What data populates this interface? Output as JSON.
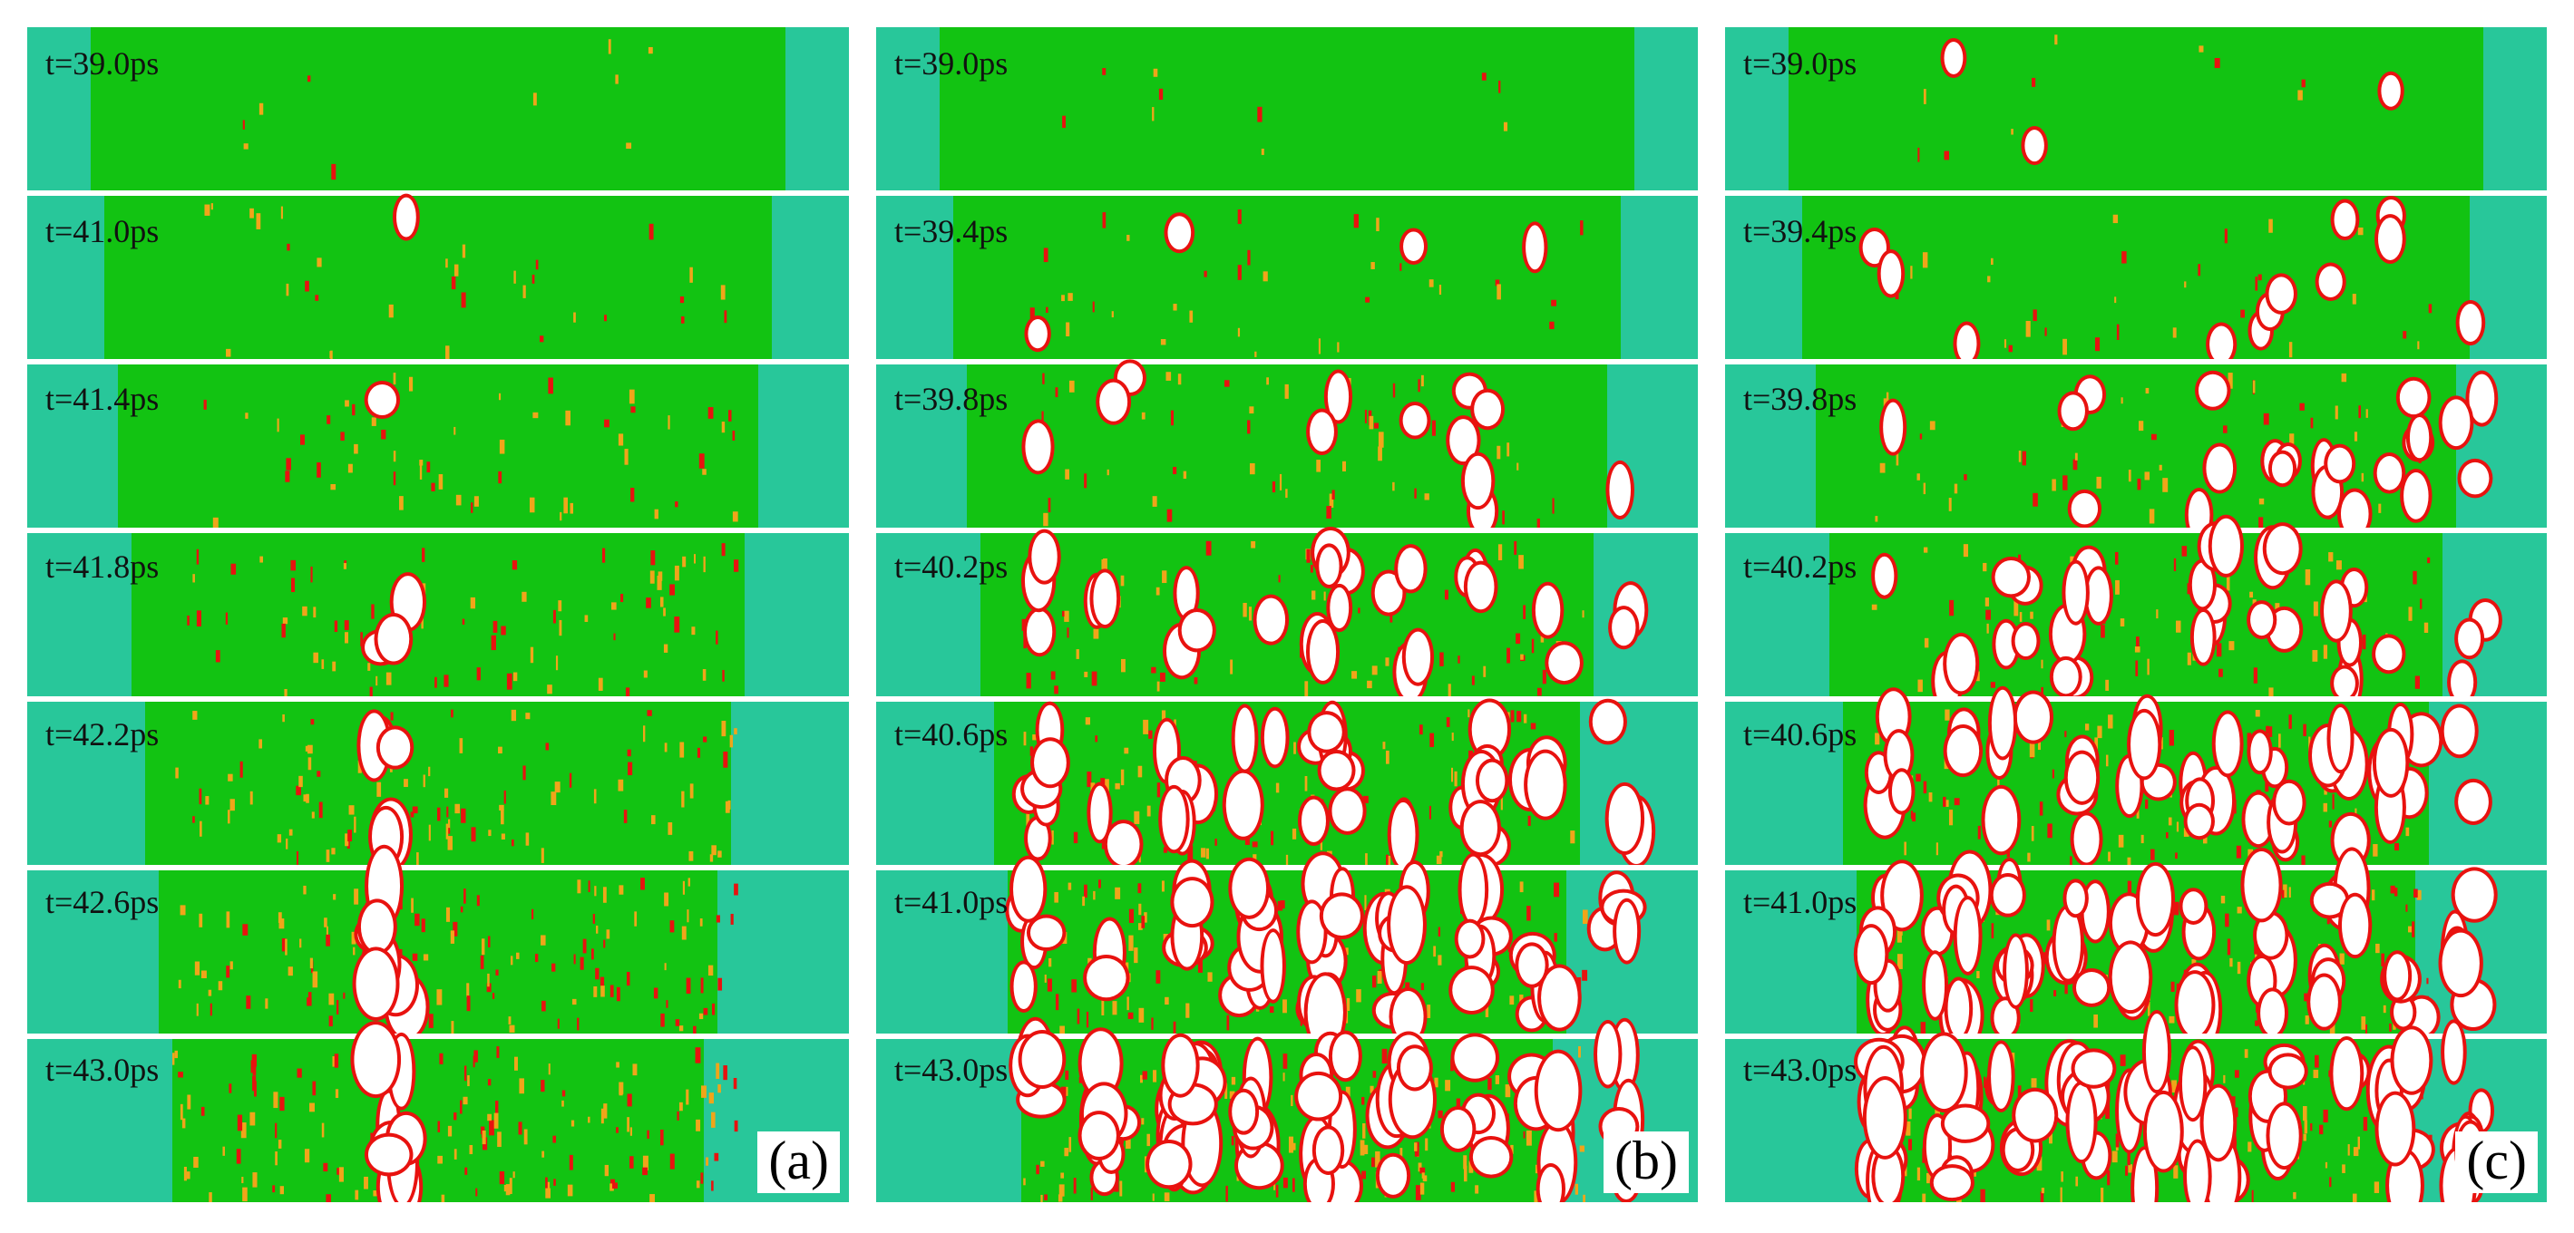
{
  "figure": {
    "colors": {
      "green": "#12c312",
      "cyan": "#28c79a",
      "red": "#e8120f",
      "orange": "#f0a51a",
      "void": "#ffffff",
      "separator": "#ffffff"
    },
    "panels": [
      {
        "label": "(a)",
        "times": [
          "t=39.0ps",
          "t=41.0ps",
          "t=41.4ps",
          "t=41.8ps",
          "t=42.2ps",
          "t=42.6ps",
          "t=43.0ps"
        ],
        "voids_per_frame": [
          0,
          1,
          1,
          3,
          5,
          7,
          9
        ],
        "void_bands": 1,
        "seed": 11
      },
      {
        "label": "(b)",
        "times": [
          "t=39.0ps",
          "t=39.4ps",
          "t=39.8ps",
          "t=40.2ps",
          "t=40.6ps",
          "t=41.0ps",
          "t=43.0ps"
        ],
        "voids_per_frame": [
          0,
          4,
          12,
          26,
          40,
          55,
          70
        ],
        "void_bands": 9,
        "seed": 23
      },
      {
        "label": "(c)",
        "times": [
          "t=39.0ps",
          "t=39.4ps",
          "t=39.8ps",
          "t=40.2ps",
          "t=40.6ps",
          "t=41.0ps",
          "t=43.0ps"
        ],
        "voids_per_frame": [
          3,
          12,
          22,
          34,
          46,
          58,
          72
        ],
        "void_bands": 10,
        "seed": 37
      }
    ]
  }
}
